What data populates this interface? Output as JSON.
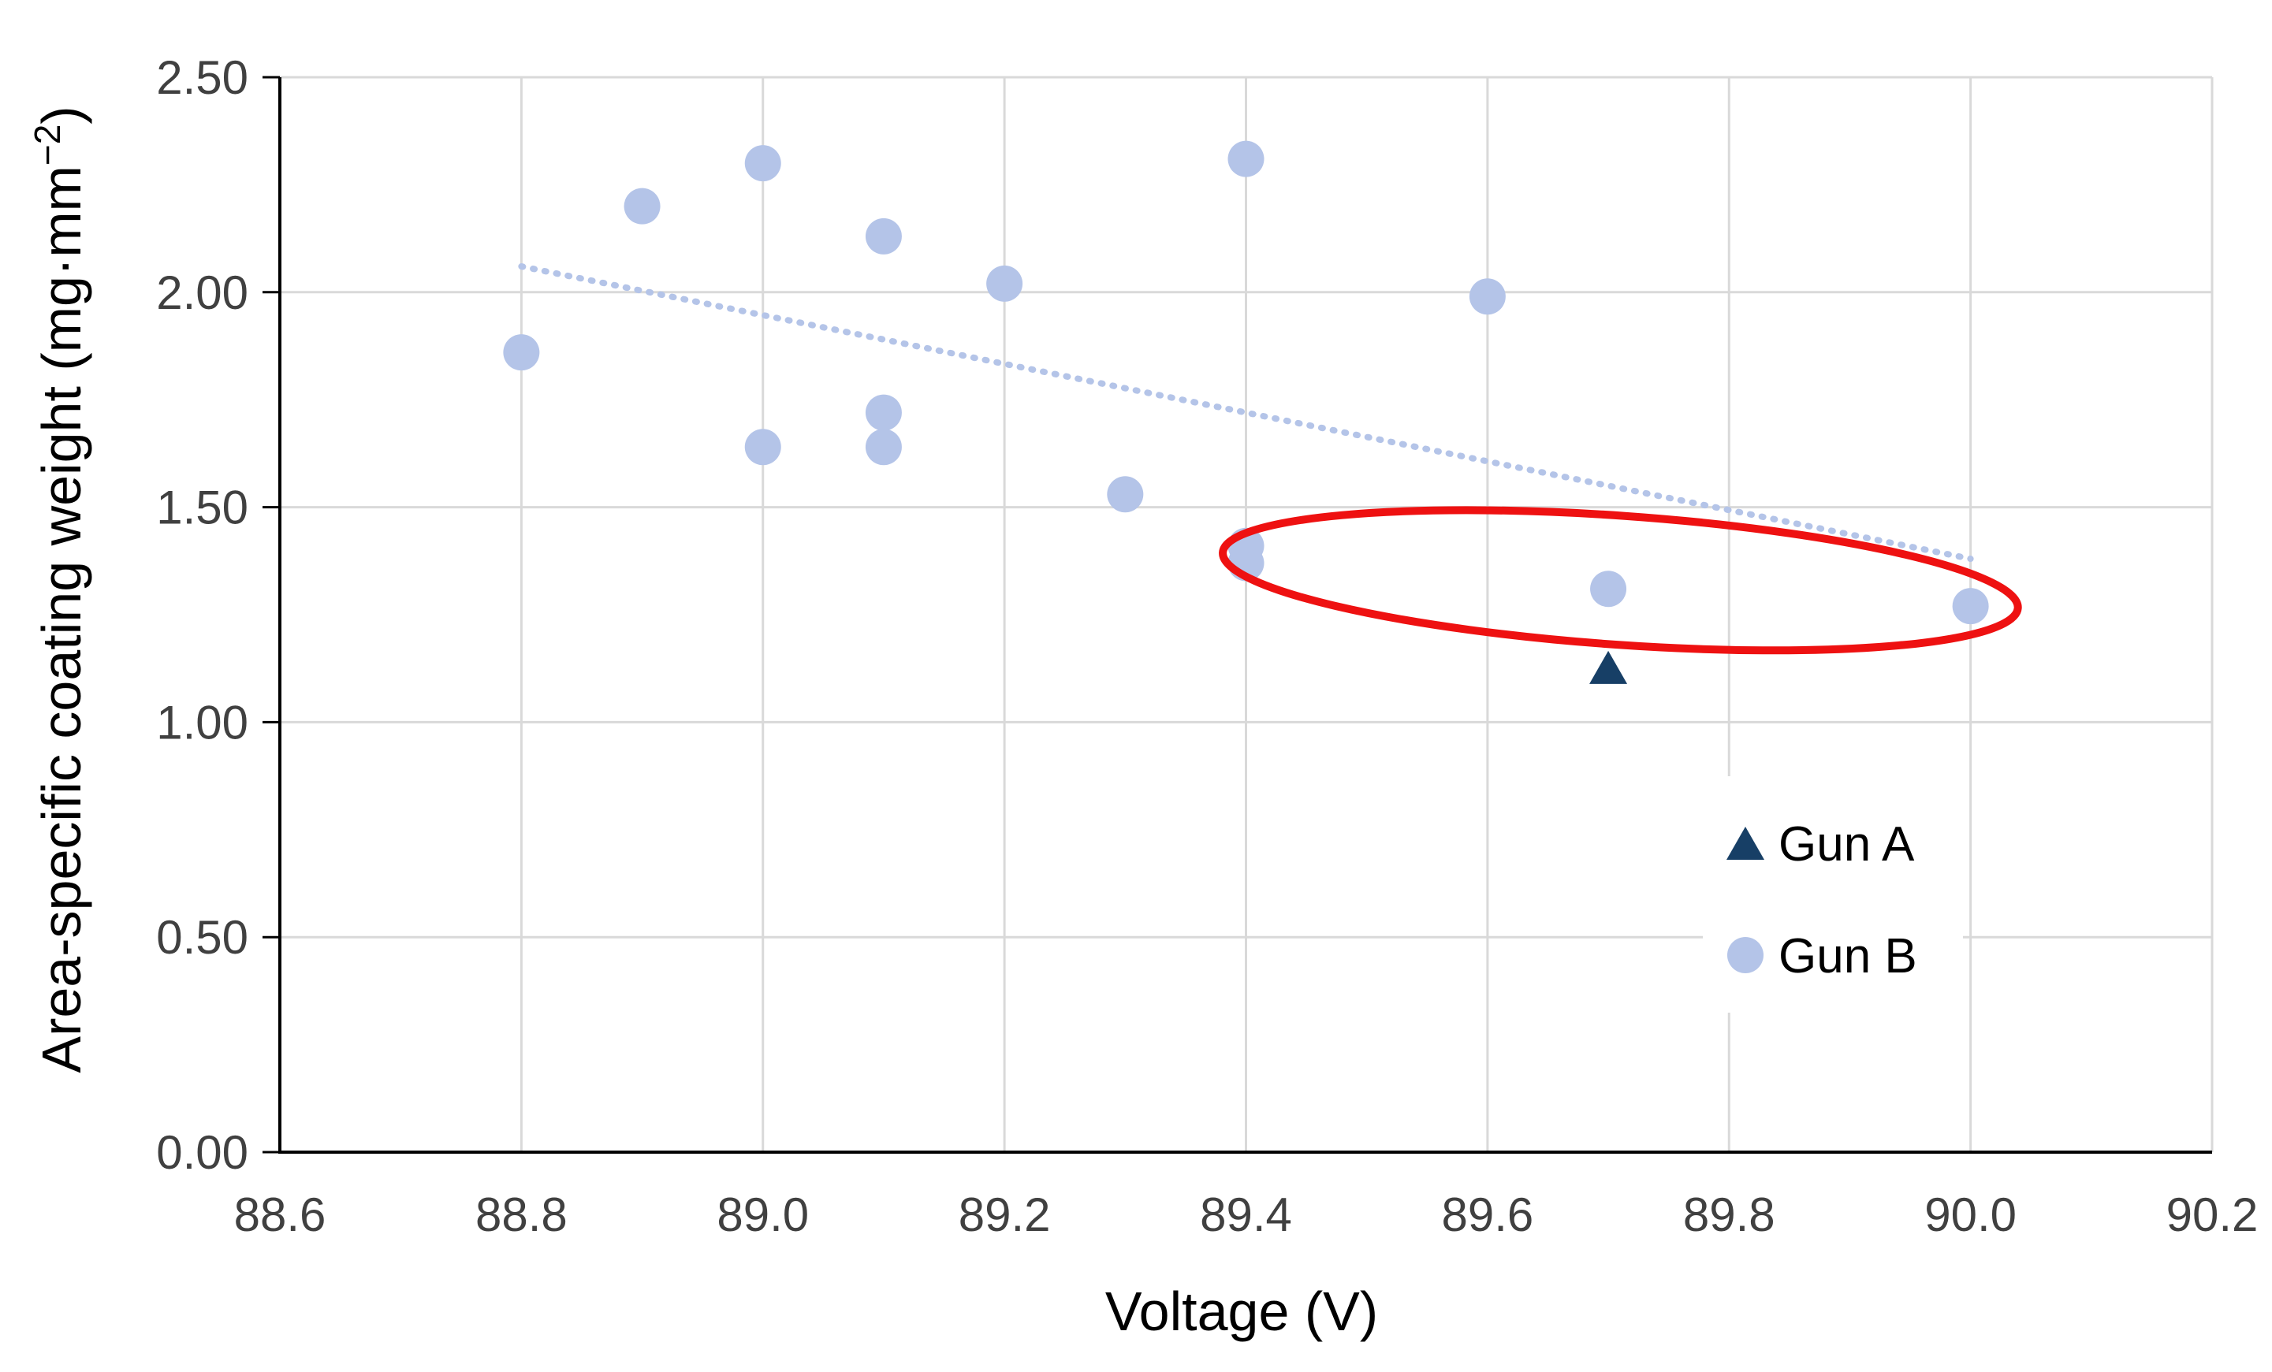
{
  "chart_data": {
    "type": "scatter",
    "xlabel": "Voltage (V)",
    "ylabel_main": "Area-specific coating weight (mg·mm",
    "ylabel_sup": "−2",
    "ylabel_close": ")",
    "xlim": [
      88.6,
      90.2
    ],
    "ylim": [
      0.0,
      2.5
    ],
    "x_ticks": [
      88.6,
      88.8,
      89.0,
      89.2,
      89.4,
      89.6,
      89.8,
      90.0,
      90.2
    ],
    "x_tick_labels": [
      "88.6",
      "88.8",
      "89.0",
      "89.2",
      "89.4",
      "89.6",
      "89.8",
      "90.0",
      "90.2"
    ],
    "y_ticks": [
      0.0,
      0.5,
      1.0,
      1.5,
      2.0,
      2.5
    ],
    "y_tick_labels": [
      "0.00",
      "0.50",
      "1.00",
      "1.50",
      "2.00",
      "2.50"
    ],
    "grid": true,
    "legend_position": "right-bottom",
    "series": [
      {
        "name": "Gun A",
        "marker": "triangle",
        "color": "#173f66",
        "points": [
          {
            "x": 89.7,
            "y": 1.12
          }
        ]
      },
      {
        "name": "Gun B",
        "marker": "circle",
        "color": "#b4c4e8",
        "points": [
          {
            "x": 88.8,
            "y": 1.86
          },
          {
            "x": 88.9,
            "y": 2.2
          },
          {
            "x": 89.0,
            "y": 2.3
          },
          {
            "x": 89.0,
            "y": 1.64
          },
          {
            "x": 89.1,
            "y": 2.13
          },
          {
            "x": 89.1,
            "y": 1.72
          },
          {
            "x": 89.1,
            "y": 1.64
          },
          {
            "x": 89.2,
            "y": 2.02
          },
          {
            "x": 89.3,
            "y": 1.53
          },
          {
            "x": 89.4,
            "y": 2.31
          },
          {
            "x": 89.4,
            "y": 1.41
          },
          {
            "x": 89.4,
            "y": 1.37
          },
          {
            "x": 89.6,
            "y": 1.99
          },
          {
            "x": 89.7,
            "y": 1.31
          },
          {
            "x": 90.0,
            "y": 1.27
          }
        ]
      }
    ],
    "trendline": {
      "series": "Gun B",
      "style": "dotted",
      "color": "#b4c4e8",
      "from": {
        "x": 88.8,
        "y": 2.06
      },
      "to": {
        "x": 90.0,
        "y": 1.38
      }
    },
    "highlight": {
      "shape": "ellipse",
      "color": "#ee1111",
      "x_range": [
        89.38,
        90.04
      ],
      "y_range": [
        1.18,
        1.48
      ],
      "tilt_deg": 4
    },
    "colors": {
      "grid": "#d9d9d9",
      "axis": "#000000",
      "tick_text": "#404040"
    }
  }
}
